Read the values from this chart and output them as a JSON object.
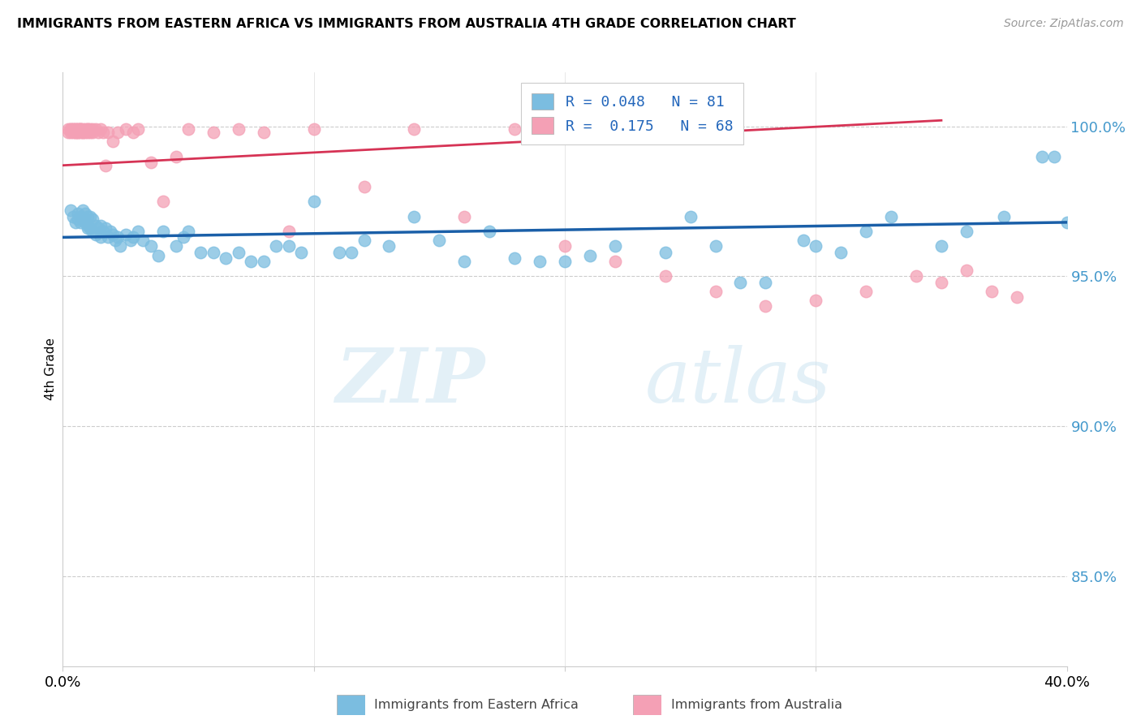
{
  "title": "IMMIGRANTS FROM EASTERN AFRICA VS IMMIGRANTS FROM AUSTRALIA 4TH GRADE CORRELATION CHART",
  "source": "Source: ZipAtlas.com",
  "ylabel": "4th Grade",
  "yaxis_values": [
    1.0,
    0.95,
    0.9,
    0.85
  ],
  "xmin": 0.0,
  "xmax": 0.4,
  "ymin": 0.82,
  "ymax": 1.018,
  "legend_r_blue": "0.048",
  "legend_n_blue": "81",
  "legend_r_pink": "0.175",
  "legend_n_pink": "68",
  "legend_label_blue": "Immigrants from Eastern Africa",
  "legend_label_pink": "Immigrants from Australia",
  "color_blue": "#7bbde0",
  "color_pink": "#f4a0b5",
  "line_color_blue": "#1a5fa8",
  "line_color_pink": "#d63355",
  "watermark_zip": "ZIP",
  "watermark_atlas": "atlas",
  "blue_x": [
    0.003,
    0.004,
    0.005,
    0.006,
    0.006,
    0.007,
    0.007,
    0.008,
    0.008,
    0.009,
    0.009,
    0.01,
    0.01,
    0.01,
    0.011,
    0.011,
    0.012,
    0.012,
    0.013,
    0.013,
    0.014,
    0.015,
    0.015,
    0.016,
    0.017,
    0.018,
    0.019,
    0.02,
    0.021,
    0.022,
    0.023,
    0.025,
    0.027,
    0.028,
    0.03,
    0.032,
    0.035,
    0.038,
    0.04,
    0.045,
    0.048,
    0.05,
    0.055,
    0.06,
    0.065,
    0.07,
    0.075,
    0.08,
    0.085,
    0.09,
    0.095,
    0.1,
    0.11,
    0.115,
    0.12,
    0.13,
    0.14,
    0.15,
    0.16,
    0.17,
    0.18,
    0.19,
    0.2,
    0.21,
    0.22,
    0.24,
    0.25,
    0.26,
    0.27,
    0.28,
    0.295,
    0.3,
    0.31,
    0.32,
    0.33,
    0.35,
    0.36,
    0.375,
    0.39,
    0.395,
    0.4
  ],
  "blue_y": [
    0.972,
    0.97,
    0.968,
    0.971,
    0.969,
    0.97,
    0.968,
    0.972,
    0.969,
    0.971,
    0.968,
    0.97,
    0.967,
    0.966,
    0.97,
    0.966,
    0.969,
    0.965,
    0.967,
    0.964,
    0.966,
    0.967,
    0.963,
    0.965,
    0.966,
    0.963,
    0.965,
    0.964,
    0.962,
    0.963,
    0.96,
    0.964,
    0.962,
    0.963,
    0.965,
    0.962,
    0.96,
    0.957,
    0.965,
    0.96,
    0.963,
    0.965,
    0.958,
    0.958,
    0.956,
    0.958,
    0.955,
    0.955,
    0.96,
    0.96,
    0.958,
    0.975,
    0.958,
    0.958,
    0.962,
    0.96,
    0.97,
    0.962,
    0.955,
    0.965,
    0.956,
    0.955,
    0.955,
    0.957,
    0.96,
    0.958,
    0.97,
    0.96,
    0.948,
    0.948,
    0.962,
    0.96,
    0.958,
    0.965,
    0.97,
    0.96,
    0.965,
    0.97,
    0.99,
    0.99,
    0.968
  ],
  "pink_x": [
    0.002,
    0.002,
    0.003,
    0.003,
    0.003,
    0.004,
    0.004,
    0.004,
    0.005,
    0.005,
    0.005,
    0.005,
    0.006,
    0.006,
    0.006,
    0.006,
    0.007,
    0.007,
    0.007,
    0.007,
    0.008,
    0.008,
    0.008,
    0.009,
    0.009,
    0.01,
    0.01,
    0.01,
    0.011,
    0.011,
    0.012,
    0.012,
    0.013,
    0.014,
    0.015,
    0.016,
    0.017,
    0.018,
    0.02,
    0.022,
    0.025,
    0.028,
    0.03,
    0.035,
    0.04,
    0.045,
    0.05,
    0.06,
    0.07,
    0.08,
    0.09,
    0.1,
    0.12,
    0.14,
    0.16,
    0.18,
    0.2,
    0.22,
    0.24,
    0.26,
    0.28,
    0.3,
    0.32,
    0.34,
    0.35,
    0.36,
    0.37,
    0.38
  ],
  "pink_y": [
    0.999,
    0.998,
    0.999,
    0.998,
    0.999,
    0.999,
    0.998,
    0.999,
    0.999,
    0.998,
    0.999,
    0.998,
    0.999,
    0.998,
    0.999,
    0.998,
    0.999,
    0.999,
    0.998,
    0.999,
    0.998,
    0.999,
    0.998,
    0.999,
    0.998,
    0.999,
    0.998,
    0.999,
    0.999,
    0.998,
    0.999,
    0.998,
    0.999,
    0.998,
    0.999,
    0.998,
    0.987,
    0.998,
    0.995,
    0.998,
    0.999,
    0.998,
    0.999,
    0.988,
    0.975,
    0.99,
    0.999,
    0.998,
    0.999,
    0.998,
    0.965,
    0.999,
    0.98,
    0.999,
    0.97,
    0.999,
    0.96,
    0.955,
    0.95,
    0.945,
    0.94,
    0.942,
    0.945,
    0.95,
    0.948,
    0.952,
    0.945,
    0.943
  ],
  "blue_trendline_x": [
    0.0,
    0.4
  ],
  "blue_trendline_y": [
    0.963,
    0.968
  ],
  "pink_trendline_x": [
    0.0,
    0.35
  ],
  "pink_trendline_y": [
    0.987,
    1.002
  ]
}
